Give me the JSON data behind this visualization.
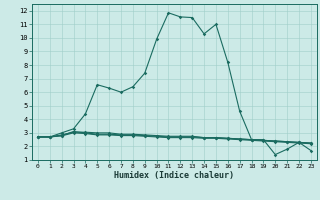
{
  "xlabel": "Humidex (Indice chaleur)",
  "background_color": "#cceae7",
  "line_color": "#1a6b60",
  "xlim": [
    -0.5,
    23.5
  ],
  "ylim": [
    1,
    12.5
  ],
  "xticks": [
    0,
    1,
    2,
    3,
    4,
    5,
    6,
    7,
    8,
    9,
    10,
    11,
    12,
    13,
    14,
    15,
    16,
    17,
    18,
    19,
    20,
    21,
    22,
    23
  ],
  "yticks": [
    1,
    2,
    3,
    4,
    5,
    6,
    7,
    8,
    9,
    10,
    11,
    12
  ],
  "series": [
    {
      "x": [
        0,
        1,
        2,
        3,
        4,
        5,
        6,
        7,
        8,
        9,
        10,
        11,
        12,
        13,
        14,
        15,
        16,
        17,
        18,
        19,
        20,
        21,
        22,
        23
      ],
      "y": [
        2.7,
        2.7,
        3.0,
        3.3,
        4.4,
        6.55,
        6.3,
        6.0,
        6.4,
        7.4,
        9.9,
        11.85,
        11.55,
        11.5,
        10.3,
        11.0,
        8.2,
        4.6,
        2.5,
        2.5,
        1.4,
        1.8,
        2.3,
        1.7
      ]
    },
    {
      "x": [
        0,
        1,
        2,
        3,
        4,
        5,
        6,
        7,
        8,
        9,
        10,
        11,
        12,
        13,
        14,
        15,
        16,
        17,
        18,
        19,
        20,
        21,
        22,
        23
      ],
      "y": [
        2.7,
        2.7,
        2.85,
        3.05,
        3.05,
        3.0,
        3.0,
        2.9,
        2.9,
        2.85,
        2.8,
        2.75,
        2.75,
        2.75,
        2.65,
        2.65,
        2.6,
        2.55,
        2.5,
        2.45,
        2.4,
        2.35,
        2.3,
        2.25
      ]
    },
    {
      "x": [
        0,
        1,
        2,
        3,
        4,
        5,
        6,
        7,
        8,
        9,
        10,
        11,
        12,
        13,
        14,
        15,
        16,
        17,
        18,
        19,
        20,
        21,
        22,
        23
      ],
      "y": [
        2.7,
        2.7,
        2.8,
        3.1,
        3.0,
        2.9,
        2.9,
        2.85,
        2.85,
        2.8,
        2.75,
        2.7,
        2.7,
        2.7,
        2.65,
        2.65,
        2.6,
        2.55,
        2.5,
        2.45,
        2.4,
        2.35,
        2.3,
        2.25
      ]
    },
    {
      "x": [
        0,
        1,
        2,
        3,
        4,
        5,
        6,
        7,
        8,
        9,
        10,
        11,
        12,
        13,
        14,
        15,
        16,
        17,
        18,
        19,
        20,
        21,
        22,
        23
      ],
      "y": [
        2.7,
        2.7,
        2.78,
        3.0,
        2.95,
        2.85,
        2.85,
        2.8,
        2.8,
        2.75,
        2.7,
        2.65,
        2.65,
        2.65,
        2.6,
        2.6,
        2.55,
        2.5,
        2.45,
        2.4,
        2.35,
        2.3,
        2.25,
        2.2
      ]
    }
  ]
}
